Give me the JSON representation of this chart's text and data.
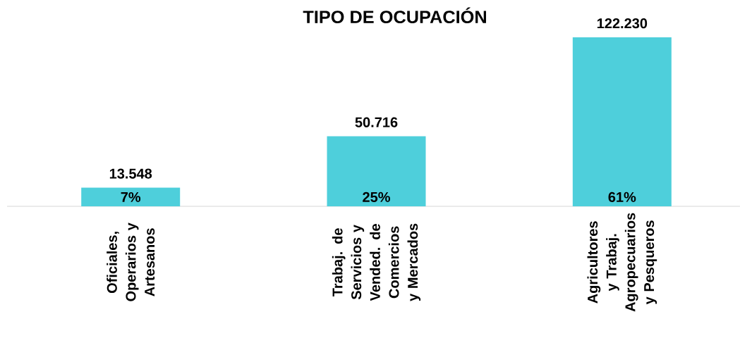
{
  "chart_data": {
    "type": "bar",
    "title": "TIPO DE OCUPACIÓN",
    "categories": [
      "Oficiales, Operarios y Artesanos",
      "Trabaj. de Servicios y Vended. de Comercios y Mercados",
      "Agricultores y Trabaj. Agropecuarios y Pesqueros"
    ],
    "values": [
      13548,
      50716,
      122230
    ],
    "value_labels": [
      "13.548",
      "50.716",
      "122.230"
    ],
    "color": "#4ecfdb",
    "annotations": [
      {
        "text": "7%",
        "x": "Oficiales, Operarios y Artesanos",
        "y": 0
      },
      {
        "text": "25%",
        "x": "Trabaj. de Servicios y Vended. de Comercios y Mercados",
        "y": 0
      },
      {
        "text": "61%",
        "x": "Agricultores y Trabaj. Agropecuarios y Pesqueros",
        "y": 0
      }
    ]
  }
}
